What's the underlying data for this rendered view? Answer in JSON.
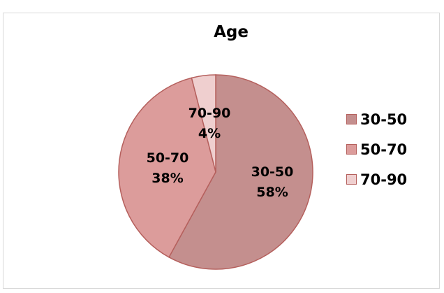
{
  "chart_data": {
    "type": "pie",
    "title": "Age",
    "categories": [
      "30-50",
      "50-70",
      "70-90"
    ],
    "values": [
      58,
      38,
      4
    ],
    "value_labels": [
      "58%",
      "38%",
      "4%"
    ],
    "colors": [
      "#c48f8e",
      "#dc9c9b",
      "#efcfcf"
    ],
    "stroke_color": "#b5605d",
    "legend_position": "right",
    "legend": [
      "30-50",
      "50-70",
      "70-90"
    ]
  }
}
